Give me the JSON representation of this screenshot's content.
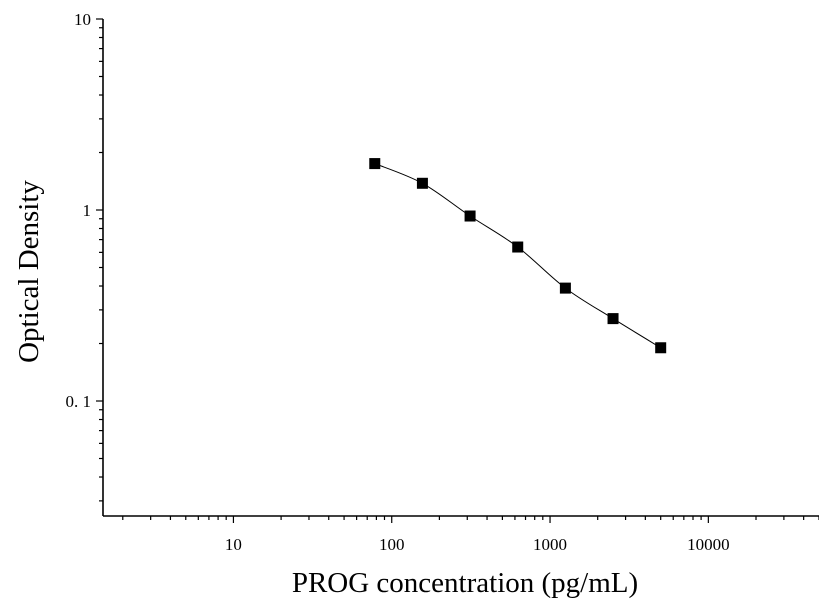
{
  "chart_data": {
    "type": "scatter",
    "title": "",
    "xlabel": "PROG concentration (pg/mL)",
    "ylabel": "Optical Density",
    "x_scale": "log",
    "y_scale": "log",
    "xlim": [
      1.5,
      50000
    ],
    "ylim": [
      0.025,
      10
    ],
    "x_ticks": [
      10,
      100,
      1000,
      10000
    ],
    "x_tick_labels": [
      "10",
      "100",
      "1000",
      "10000"
    ],
    "y_ticks": [
      0.1,
      1,
      10
    ],
    "y_tick_labels": [
      "0. 1",
      "1",
      "10"
    ],
    "grid": false,
    "legend": "none",
    "series": [
      {
        "marker": "square",
        "fit": "smooth-curve",
        "color": "#000000",
        "x": [
          78.13,
          156.25,
          312.5,
          625,
          1250,
          2500,
          5000
        ],
        "y": [
          1.75,
          1.38,
          0.93,
          0.64,
          0.39,
          0.27,
          0.19
        ]
      }
    ]
  }
}
